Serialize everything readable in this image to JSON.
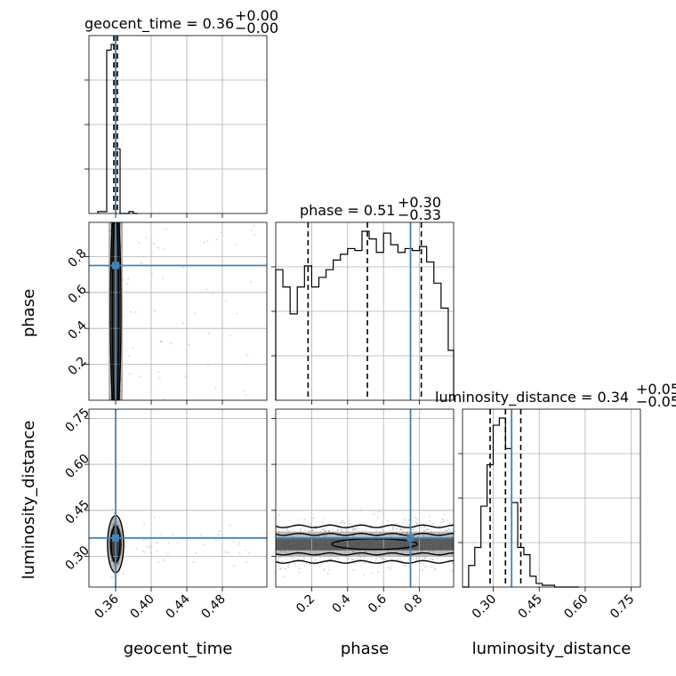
{
  "chart_data": {
    "type": "corner",
    "grid": true,
    "parameters": [
      "geocent_time",
      "phase",
      "luminosity_distance"
    ],
    "axis_labels": {
      "geocent_time": "geocent_time",
      "phase": "phase",
      "luminosity_distance": "luminosity_distance"
    },
    "ranges": {
      "geocent_time": [
        0.33,
        0.53
      ],
      "phase": [
        0.0,
        0.99
      ],
      "luminosity_distance": [
        0.2,
        0.78
      ]
    },
    "ticks": {
      "geocent_time": [
        "0.36",
        "0.40",
        "0.44",
        "0.48"
      ],
      "phase": [
        "0.2",
        "0.4",
        "0.6",
        "0.8"
      ],
      "luminosity_distance": [
        "0.30",
        "0.45",
        "0.60",
        "0.75"
      ]
    },
    "titles": {
      "geocent_time": {
        "text": "geocent_time = 0.36",
        "plus": "+0.00",
        "minus": "−0.00"
      },
      "phase": {
        "text": "phase = 0.51",
        "plus": "+0.30",
        "minus": "−0.33"
      },
      "luminosity_distance": {
        "text": "luminosity_distance = 0.34",
        "plus": "+0.05",
        "minus": "−0.05"
      }
    },
    "truths": {
      "geocent_time": 0.36,
      "phase": 0.75,
      "luminosity_distance": 0.36
    },
    "quantiles": {
      "geocent_time": [
        0.358,
        0.36,
        0.362
      ],
      "phase": [
        0.18,
        0.51,
        0.81
      ],
      "luminosity_distance": [
        0.29,
        0.34,
        0.39
      ]
    },
    "histograms": {
      "geocent_time": {
        "edges": [
          0.34,
          0.345,
          0.35,
          0.355,
          0.36,
          0.365,
          0.37,
          0.375,
          0.38,
          0.385
        ],
        "counts": [
          0.01,
          0.01,
          0.86,
          0.89,
          0.34,
          0.0,
          0.0,
          0.01,
          0.0
        ]
      },
      "phase": {
        "edges": [
          0.0,
          0.04,
          0.08,
          0.12,
          0.16,
          0.2,
          0.24,
          0.28,
          0.32,
          0.36,
          0.4,
          0.44,
          0.48,
          0.52,
          0.56,
          0.6,
          0.64,
          0.68,
          0.72,
          0.76,
          0.8,
          0.84,
          0.88,
          0.92,
          0.96,
          0.99
        ],
        "counts": [
          0.68,
          0.59,
          0.45,
          0.59,
          0.7,
          0.59,
          0.64,
          0.68,
          0.73,
          0.76,
          0.79,
          0.78,
          0.88,
          0.84,
          0.77,
          0.87,
          0.81,
          0.77,
          0.79,
          0.78,
          0.8,
          0.72,
          0.61,
          0.48,
          0.26
        ]
      },
      "luminosity_distance": {
        "edges": [
          0.2,
          0.22,
          0.24,
          0.26,
          0.28,
          0.3,
          0.32,
          0.34,
          0.36,
          0.38,
          0.4,
          0.42,
          0.44,
          0.46,
          0.48,
          0.5,
          0.52,
          0.54,
          0.56,
          0.58
        ],
        "counts": [
          0.0,
          0.12,
          0.22,
          0.45,
          0.68,
          0.9,
          0.94,
          0.77,
          0.47,
          0.22,
          0.18,
          0.06,
          0.02,
          0.01,
          0.01,
          0.0,
          0.0,
          0.0,
          0.0
        ]
      }
    },
    "panels_2d": [
      {
        "x": "geocent_time",
        "y": "phase"
      },
      {
        "x": "geocent_time",
        "y": "luminosity_distance"
      },
      {
        "x": "phase",
        "y": "luminosity_distance"
      }
    ]
  }
}
